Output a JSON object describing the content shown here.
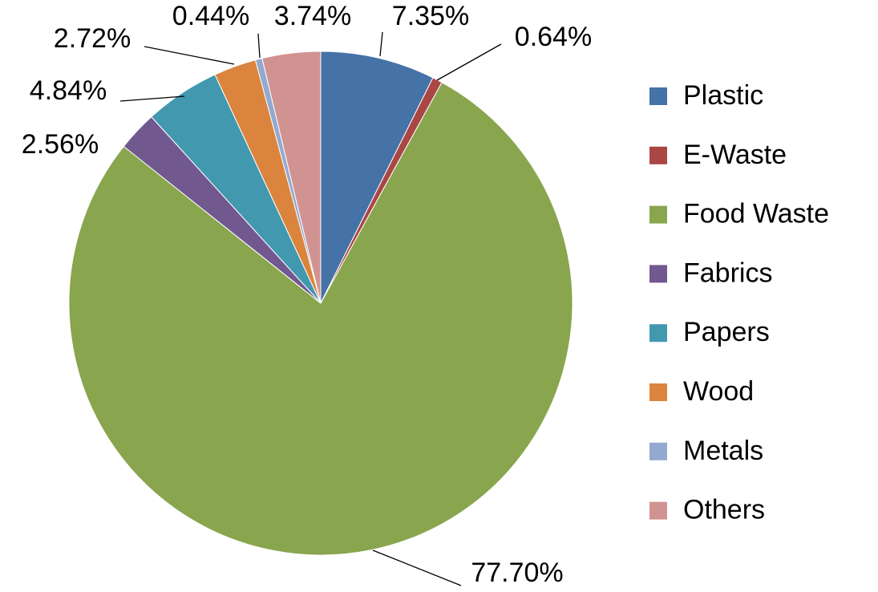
{
  "chart_data": {
    "type": "pie",
    "categories": [
      "Plastic",
      "E-Waste",
      "Food Waste",
      "Fabrics",
      "Papers",
      "Wood",
      "Metals",
      "Others"
    ],
    "values": [
      7.35,
      0.64,
      77.7,
      2.56,
      4.84,
      2.72,
      0.44,
      3.74
    ],
    "value_labels": [
      "7.35%",
      "0.64%",
      "77.70%",
      "2.56%",
      "4.84%",
      "2.72%",
      "0.44%",
      "3.74%"
    ],
    "colors": [
      "#4572a7",
      "#aa4643",
      "#89a54e",
      "#71588f",
      "#4198af",
      "#db843d",
      "#93a9cf",
      "#d19392"
    ],
    "legend": "right"
  }
}
